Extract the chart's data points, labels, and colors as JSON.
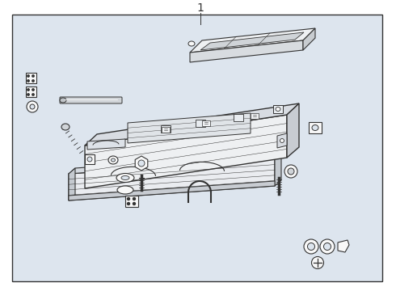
{
  "title": "1",
  "bg_color": "#e8eef4",
  "border_color": "#333333",
  "line_color": "#333333",
  "line_width": 0.8,
  "fig_bg": "#ffffff",
  "inner_bg": "#dde5ee"
}
